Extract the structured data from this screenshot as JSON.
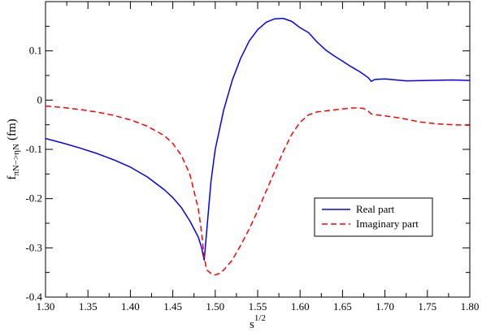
{
  "chart_data": {
    "type": "line",
    "title": "",
    "xlabel": {
      "base": "s",
      "sup": "1/2"
    },
    "ylabel": {
      "base": "f",
      "sub": "πN−>ηN",
      "unit": "(fm)"
    },
    "xlim": [
      1.3,
      1.8
    ],
    "ylim": [
      -0.4,
      0.2
    ],
    "xticks": [
      "1.30",
      "1.35",
      "1.40",
      "1.45",
      "1.50",
      "1.55",
      "1.60",
      "1.65",
      "1.70",
      "1.75",
      "1.80"
    ],
    "yticks": [
      "-0.4",
      "-0.3",
      "-0.2",
      "-0.1",
      "0",
      "0.1"
    ],
    "legend_position": "right-center",
    "series": [
      {
        "name": "Real part",
        "color": "#0000ff",
        "dash": "solid",
        "points": [
          [
            1.3,
            -0.078
          ],
          [
            1.32,
            -0.087
          ],
          [
            1.34,
            -0.097
          ],
          [
            1.36,
            -0.108
          ],
          [
            1.38,
            -0.121
          ],
          [
            1.4,
            -0.136
          ],
          [
            1.42,
            -0.156
          ],
          [
            1.44,
            -0.182
          ],
          [
            1.45,
            -0.198
          ],
          [
            1.46,
            -0.218
          ],
          [
            1.47,
            -0.245
          ],
          [
            1.48,
            -0.278
          ],
          [
            1.484,
            -0.3
          ],
          [
            1.487,
            -0.325
          ],
          [
            1.489,
            -0.285
          ],
          [
            1.492,
            -0.225
          ],
          [
            1.495,
            -0.165
          ],
          [
            1.5,
            -0.1
          ],
          [
            1.51,
            -0.02
          ],
          [
            1.52,
            0.04
          ],
          [
            1.53,
            0.085
          ],
          [
            1.54,
            0.12
          ],
          [
            1.55,
            0.143
          ],
          [
            1.56,
            0.158
          ],
          [
            1.57,
            0.165
          ],
          [
            1.58,
            0.166
          ],
          [
            1.59,
            0.16
          ],
          [
            1.6,
            0.147
          ],
          [
            1.61,
            0.137
          ],
          [
            1.62,
            0.118
          ],
          [
            1.63,
            0.102
          ],
          [
            1.64,
            0.09
          ],
          [
            1.65,
            0.079
          ],
          [
            1.66,
            0.068
          ],
          [
            1.67,
            0.058
          ],
          [
            1.68,
            0.046
          ],
          [
            1.684,
            0.038
          ],
          [
            1.688,
            0.042
          ],
          [
            1.7,
            0.043
          ],
          [
            1.72,
            0.04
          ],
          [
            1.725,
            0.039
          ],
          [
            1.75,
            0.04
          ],
          [
            1.78,
            0.041
          ],
          [
            1.8,
            0.04
          ]
        ]
      },
      {
        "name": "Imaginary part",
        "color": "#ff0000",
        "dash": "dashed",
        "points": [
          [
            1.3,
            -0.012
          ],
          [
            1.32,
            -0.015
          ],
          [
            1.34,
            -0.019
          ],
          [
            1.36,
            -0.024
          ],
          [
            1.38,
            -0.031
          ],
          [
            1.4,
            -0.04
          ],
          [
            1.42,
            -0.053
          ],
          [
            1.44,
            -0.072
          ],
          [
            1.45,
            -0.088
          ],
          [
            1.46,
            -0.112
          ],
          [
            1.47,
            -0.15
          ],
          [
            1.48,
            -0.22
          ],
          [
            1.484,
            -0.27
          ],
          [
            1.487,
            -0.32
          ],
          [
            1.49,
            -0.345
          ],
          [
            1.495,
            -0.352
          ],
          [
            1.5,
            -0.355
          ],
          [
            1.505,
            -0.352
          ],
          [
            1.51,
            -0.345
          ],
          [
            1.52,
            -0.325
          ],
          [
            1.53,
            -0.295
          ],
          [
            1.54,
            -0.262
          ],
          [
            1.55,
            -0.225
          ],
          [
            1.56,
            -0.185
          ],
          [
            1.57,
            -0.145
          ],
          [
            1.58,
            -0.105
          ],
          [
            1.59,
            -0.07
          ],
          [
            1.6,
            -0.045
          ],
          [
            1.61,
            -0.03
          ],
          [
            1.62,
            -0.024
          ],
          [
            1.63,
            -0.022
          ],
          [
            1.64,
            -0.02
          ],
          [
            1.65,
            -0.018
          ],
          [
            1.66,
            -0.016
          ],
          [
            1.67,
            -0.016
          ],
          [
            1.675,
            -0.017
          ],
          [
            1.68,
            -0.022
          ],
          [
            1.684,
            -0.028
          ],
          [
            1.69,
            -0.03
          ],
          [
            1.7,
            -0.032
          ],
          [
            1.72,
            -0.037
          ],
          [
            1.74,
            -0.044
          ],
          [
            1.76,
            -0.048
          ],
          [
            1.78,
            -0.05
          ],
          [
            1.8,
            -0.051
          ]
        ]
      }
    ]
  }
}
